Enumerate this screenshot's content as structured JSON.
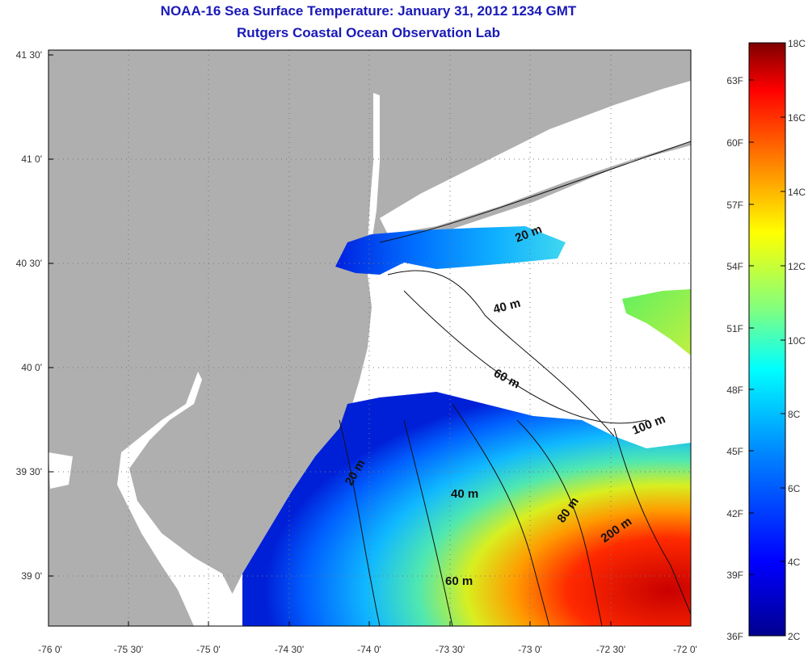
{
  "title": {
    "line1": "NOAA-16 Sea Surface Temperature:  January 31, 2012 1234 GMT",
    "line2": "Rutgers Coastal Ocean Observation Lab"
  },
  "axes": {
    "lat_ticks": [
      "41 30'",
      "41 0'",
      "40 30'",
      "40 0'",
      "39 30'",
      "39 0'"
    ],
    "lon_ticks": [
      "-76 0'",
      "-75 30'",
      "-75 0'",
      "-74 30'",
      "-74 0'",
      "-73 30'",
      "-73 0'",
      "-72 30'",
      "-72 0'"
    ]
  },
  "contours": [
    "20 m",
    "40 m",
    "60 m",
    "100 m",
    "20 m",
    "40 m",
    "60 m",
    "80 m",
    "200 m"
  ],
  "colorbar": {
    "celsius": [
      "18C",
      "16C",
      "14C",
      "12C",
      "10C",
      "8C",
      "6C",
      "4C",
      "2C"
    ],
    "fahrenheit": [
      "63F",
      "60F",
      "57F",
      "54F",
      "51F",
      "48F",
      "45F",
      "42F",
      "39F",
      "36F"
    ],
    "stops": [
      "#7f0000",
      "#ff0000",
      "#ff8000",
      "#ffff00",
      "#80ff80",
      "#00ffff",
      "#0080ff",
      "#0000ff",
      "#00008f"
    ]
  },
  "colors": {
    "land": "#afafaf",
    "no_data": "#ffffff",
    "title": "#1a1ab8"
  }
}
